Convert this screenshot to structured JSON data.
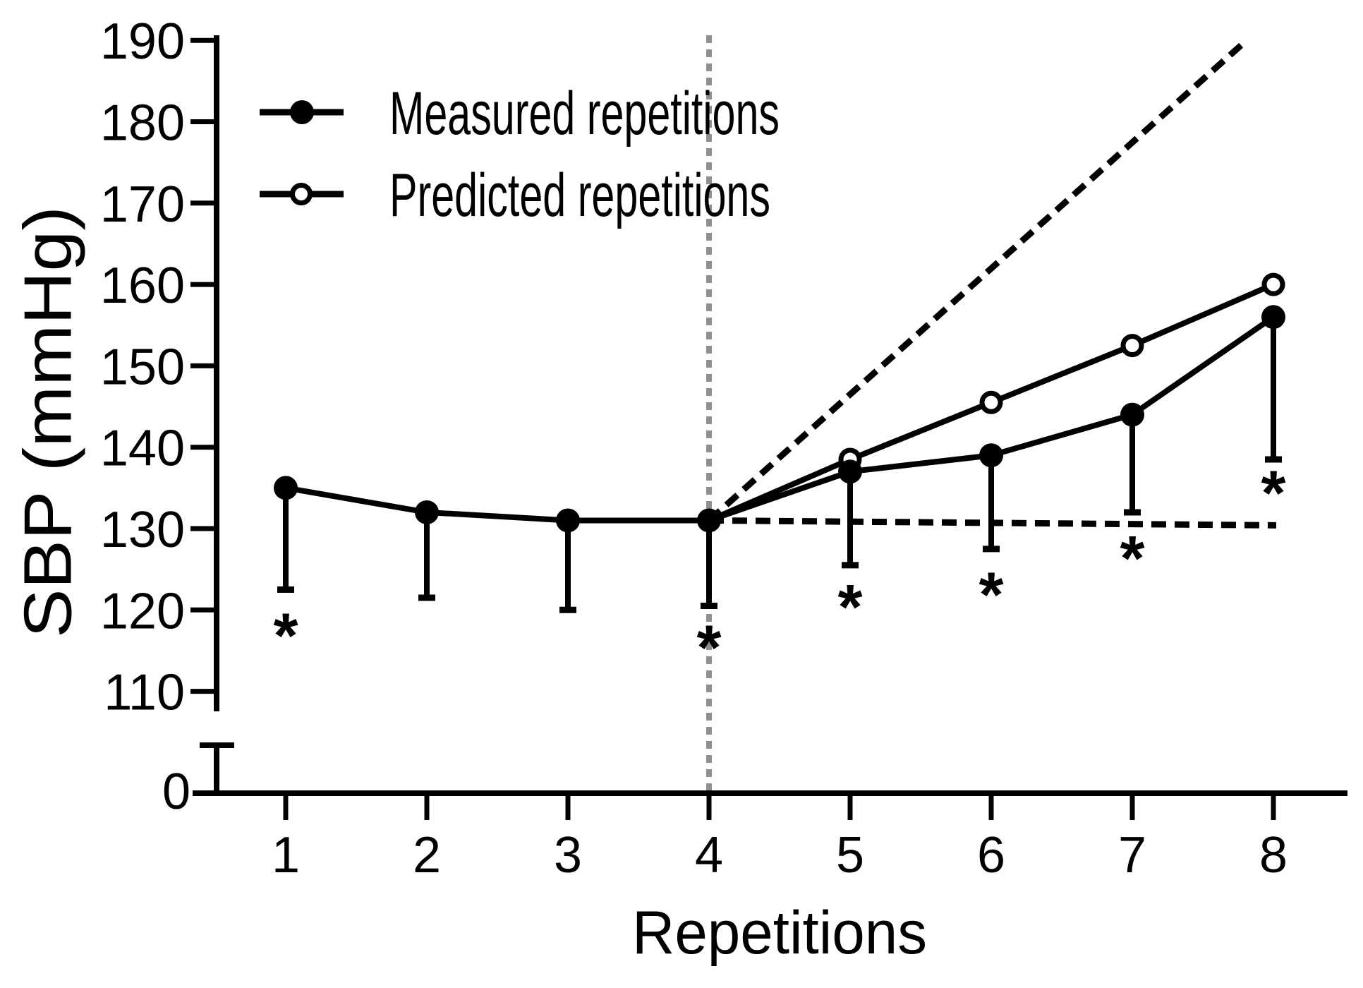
{
  "figure": {
    "background": "#ffffff",
    "line_color": "#000000",
    "prediction_marker_color": "#8f8f8f",
    "significance_symbol": "*"
  },
  "chart_data": {
    "type": "line",
    "x_label": "Repetitions",
    "y_label": "SBP (mmHg)",
    "x": [
      1,
      2,
      3,
      4,
      5,
      6,
      7,
      8
    ],
    "y_ticks": [
      110,
      120,
      130,
      140,
      150,
      160,
      170,
      180,
      190
    ],
    "y_axis_break_label": "0",
    "ylim_displayed": [
      110,
      190
    ],
    "grid": false,
    "legend_position": "top-left",
    "series": [
      {
        "name": "Measured repetitions",
        "marker": "filled-circle",
        "values": [
          135,
          132,
          131,
          131,
          137,
          139,
          144,
          156
        ],
        "error_lower": [
          122.5,
          121.5,
          120,
          120.5,
          125.5,
          127.5,
          132,
          138.5
        ]
      },
      {
        "name": "Predicted repetitions",
        "marker": "open-circle",
        "values": [
          null,
          null,
          null,
          131,
          138.5,
          145.5,
          152.5,
          160
        ],
        "error_lower": [
          null,
          null,
          null,
          null,
          null,
          null,
          null,
          null
        ]
      }
    ],
    "reference_lines": [
      {
        "name": "steep-extrapolation-dashed",
        "style": "dashed",
        "color": "#000000",
        "from": {
          "x": 4,
          "y": 131
        },
        "to": {
          "x": 7.81,
          "y": 190
        }
      },
      {
        "name": "flat-extrapolation-dashed",
        "style": "dashed",
        "color": "#000000",
        "from": {
          "x": 4,
          "y": 131
        },
        "to": {
          "x": 8.02,
          "y": 130.4
        }
      },
      {
        "name": "prediction-onset-dotted",
        "style": "dotted",
        "color": "#8f8f8f",
        "vertical_at_x": 4
      }
    ],
    "annotations": {
      "symbol": "*",
      "positions": [
        {
          "x": 1,
          "y": 118
        },
        {
          "x": 4,
          "y": 116.5
        },
        {
          "x": 5,
          "y": 121.5
        },
        {
          "x": 6,
          "y": 123
        },
        {
          "x": 7,
          "y": 127.5
        },
        {
          "x": 8,
          "y": 135.5
        }
      ]
    }
  }
}
